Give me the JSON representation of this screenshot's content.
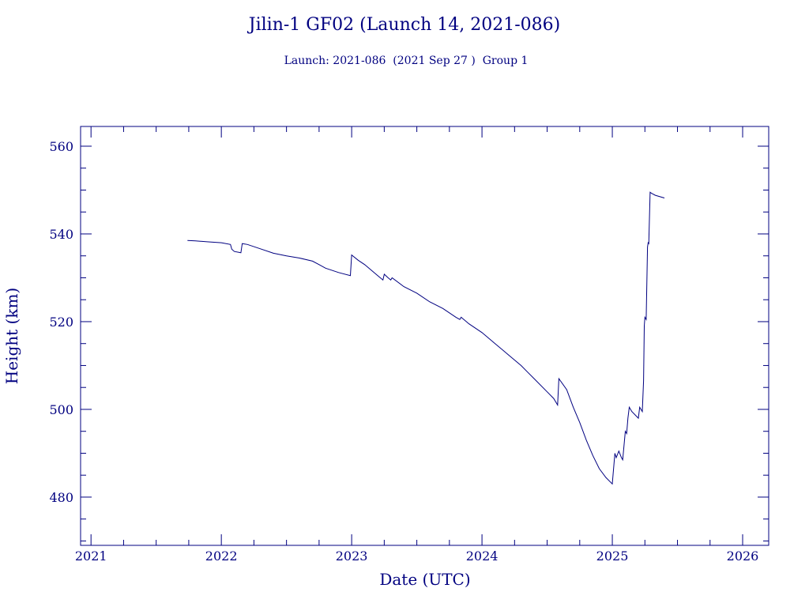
{
  "chart_data": {
    "type": "line",
    "title": "Jilin-1 GF02 (Launch 14, 2021-086)",
    "subtitle": "Launch: 2021-086  (2021 Sep 27 )  Group 1",
    "xlabel": "Date (UTC)",
    "ylabel": "Height (km)",
    "xlim": [
      2020.92,
      2026.2
    ],
    "ylim": [
      469,
      564.5
    ],
    "x_ticks": [
      2021,
      2022,
      2023,
      2024,
      2025,
      2026
    ],
    "x_tick_labels": [
      "2021",
      "2022",
      "2023",
      "2024",
      "2025",
      "2026"
    ],
    "y_ticks": [
      480,
      500,
      520,
      540,
      560
    ],
    "y_tick_labels": [
      "480",
      "500",
      "520",
      "540",
      "560"
    ],
    "grid": false,
    "color": "#000080",
    "series": [
      {
        "x": [
          2021.74,
          2021.8,
          2021.9,
          2022.0,
          2022.07,
          2022.08,
          2022.1,
          2022.15,
          2022.16,
          2022.2,
          2022.3,
          2022.4,
          2022.5,
          2022.6,
          2022.7,
          2022.75,
          2022.8,
          2022.9,
          2022.99,
          2023.0,
          2023.05,
          2023.1,
          2023.2,
          2023.24,
          2023.25,
          2023.28,
          2023.3,
          2023.31,
          2023.4,
          2023.5,
          2023.6,
          2023.7,
          2023.8,
          2023.83,
          2023.84,
          2023.9,
          2024.0,
          2024.1,
          2024.2,
          2024.3,
          2024.35,
          2024.4,
          2024.5,
          2024.55,
          2024.58,
          2024.59,
          2024.65,
          2024.7,
          2024.75,
          2024.8,
          2024.85,
          2024.9,
          2024.95,
          2025.0,
          2025.02,
          2025.03,
          2025.05,
          2025.07,
          2025.08,
          2025.1,
          2025.11,
          2025.12,
          2025.13,
          2025.15,
          2025.2,
          2025.21,
          2025.23,
          2025.24,
          2025.245,
          2025.25,
          2025.26,
          2025.27,
          2025.275,
          2025.28,
          2025.29,
          2025.3,
          2025.33,
          2025.4
        ],
        "y": [
          538.5,
          538.4,
          538.2,
          538.0,
          537.6,
          536.5,
          536.0,
          535.7,
          537.8,
          537.6,
          536.6,
          535.6,
          535.0,
          534.5,
          533.8,
          533.0,
          532.2,
          531.2,
          530.5,
          535.2,
          534.0,
          533.0,
          530.5,
          529.5,
          530.8,
          530.0,
          529.5,
          530.0,
          528.0,
          526.5,
          524.5,
          523.0,
          521.0,
          520.5,
          521.0,
          519.5,
          517.5,
          515.0,
          512.5,
          510.0,
          508.5,
          507.0,
          504.0,
          502.5,
          501.0,
          507.0,
          504.5,
          500.5,
          497.0,
          493.0,
          489.5,
          486.5,
          484.5,
          483.0,
          490.0,
          489.0,
          490.5,
          489.0,
          488.5,
          495.0,
          494.5,
          498.0,
          500.5,
          499.5,
          498.0,
          500.5,
          499.5,
          506.5,
          519.0,
          521.0,
          520.5,
          537.0,
          538.0,
          537.8,
          549.5,
          549.3,
          548.8,
          548.2
        ]
      }
    ]
  }
}
